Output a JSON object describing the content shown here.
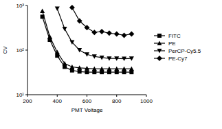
{
  "chart_data": {
    "type": "line",
    "xlabel": "PMT Voltage",
    "ylabel": "CV",
    "log": "y",
    "x": [
      300,
      350,
      400,
      450,
      500,
      550,
      600,
      650,
      700,
      750,
      800,
      850,
      900
    ],
    "xlim": [
      200,
      1000
    ],
    "xticks": [
      200,
      400,
      600,
      800,
      1000
    ],
    "ylim": [
      10,
      1000
    ],
    "yticks": [
      {
        "value": 10,
        "label": "10¹"
      },
      {
        "value": 100,
        "label": "10²"
      },
      {
        "value": 1000,
        "label": "10³"
      }
    ],
    "legend": "right",
    "series": [
      {
        "name": "FITC",
        "color": "#000000",
        "marker": "square",
        "values": [
          560,
          170,
          75,
          42,
          35,
          33,
          32,
          32,
          32,
          32,
          32,
          32,
          32
        ]
      },
      {
        "name": "PE",
        "color": "#000000",
        "marker": "triangle",
        "values": [
          750,
          200,
          90,
          50,
          42,
          40,
          39,
          38,
          38,
          38,
          38,
          38,
          38
        ]
      },
      {
        "name": "PerCP-Cy5.5",
        "color": "#000000",
        "marker": "triangle-down",
        "values": [
          null,
          null,
          850,
          300,
          150,
          100,
          80,
          72,
          68,
          65,
          65,
          64,
          65
        ]
      },
      {
        "name": "PE-Cy7",
        "color": "#000000",
        "marker": "diamond",
        "values": [
          null,
          null,
          null,
          null,
          900,
          450,
          320,
          250,
          260,
          240,
          230,
          215,
          230
        ]
      }
    ]
  }
}
